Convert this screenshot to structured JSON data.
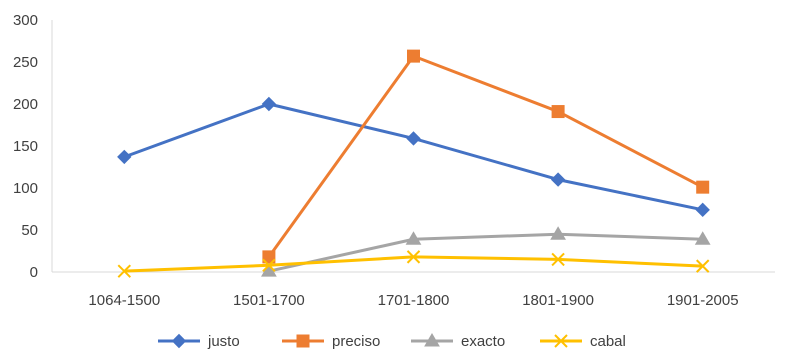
{
  "chart_data": {
    "type": "line",
    "categories": [
      "1064-1500",
      "1501-1700",
      "1701-1800",
      "1801-1900",
      "1901-2005"
    ],
    "ylim": [
      0,
      300
    ],
    "yticks": [
      0,
      50,
      100,
      150,
      200,
      250,
      300
    ],
    "grid": false,
    "legend": "bottom",
    "series": [
      {
        "name": "justo",
        "color": "#4472C4",
        "marker": "diamond",
        "values": [
          137,
          200,
          159,
          110,
          74
        ]
      },
      {
        "name": "preciso",
        "color": "#ED7D31",
        "marker": "square",
        "values": [
          null,
          18,
          257,
          191,
          101
        ]
      },
      {
        "name": "exacto",
        "color": "#A5A5A5",
        "marker": "triangle",
        "values": [
          null,
          1,
          39,
          45,
          39
        ]
      },
      {
        "name": "cabal",
        "color": "#FFC000",
        "marker": "x",
        "values": [
          1,
          8,
          18,
          15,
          7
        ]
      }
    ]
  }
}
